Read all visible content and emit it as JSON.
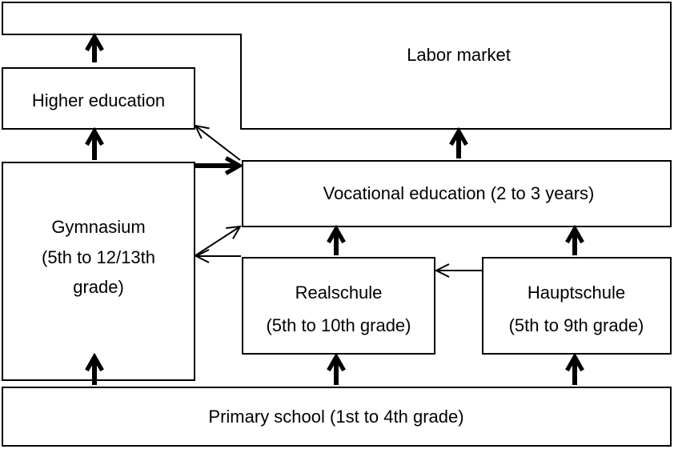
{
  "nodes": [
    {
      "lines": [
        "Labor market"
      ]
    },
    {
      "lines": [
        "Higher education"
      ]
    },
    {
      "lines": [
        "Gymnasium",
        "(5th to 12/13th",
        "grade)"
      ]
    },
    {
      "lines": [
        "Vocational education (2 to 3 years)"
      ]
    },
    {
      "lines": [
        "Realschule",
        "(5th to 10th grade)"
      ]
    },
    {
      "lines": [
        "Hauptschule",
        "(5th to 9th grade)"
      ]
    },
    {
      "lines": [
        "Primary school (1st to 4th grade)"
      ]
    }
  ]
}
